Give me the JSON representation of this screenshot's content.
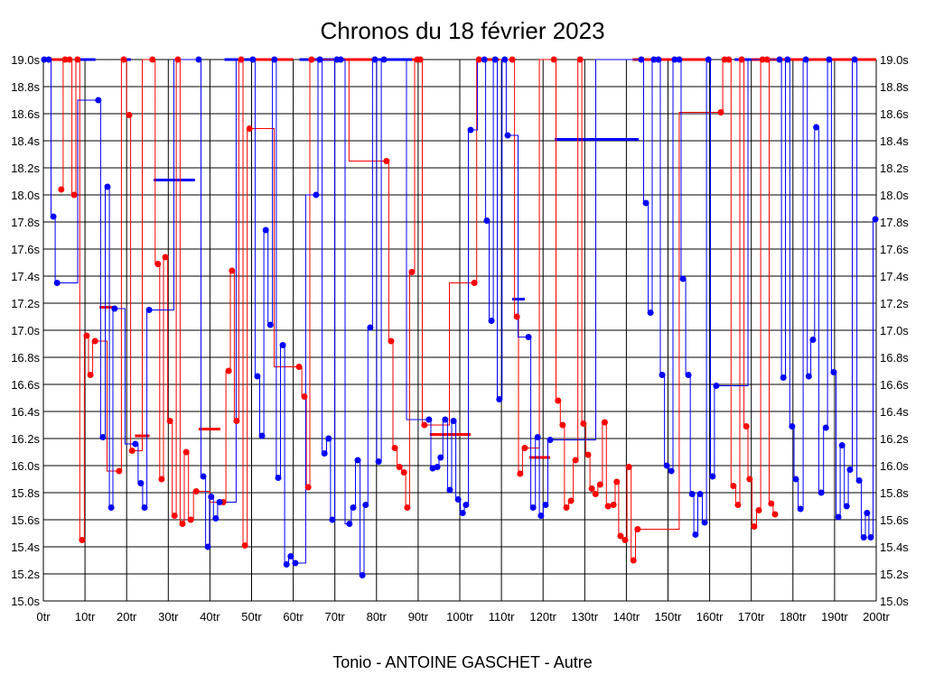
{
  "chart_data": {
    "type": "line",
    "title": "Chronos du 18 février 2023",
    "footer": "Tonio - ANTOINE GASCHET - Autre",
    "xlabel": "",
    "ylabel": "",
    "xlim": [
      0,
      200
    ],
    "ylim": [
      15.0,
      19.0
    ],
    "grid": true,
    "x_ticks": [
      "0tr",
      "10tr",
      "20tr",
      "30tr",
      "40tr",
      "50tr",
      "60tr",
      "70tr",
      "80tr",
      "90tr",
      "100tr",
      "110tr",
      "120tr",
      "130tr",
      "140tr",
      "150tr",
      "160tr",
      "170tr",
      "180tr",
      "190tr",
      "200tr"
    ],
    "y_ticks": [
      "15.0s",
      "15.2s",
      "15.4s",
      "15.6s",
      "15.8s",
      "16.0s",
      "16.2s",
      "16.4s",
      "16.6s",
      "16.8s",
      "17.0s",
      "17.2s",
      "17.4s",
      "17.6s",
      "17.8s",
      "18.0s",
      "18.2s",
      "18.4s",
      "18.6s",
      "18.8s",
      "19.0s"
    ],
    "colors": {
      "red": "#ff0000",
      "blue": "#0000ff"
    },
    "series": [
      {
        "name": "red",
        "points": [
          [
            5.2,
            19.0
          ],
          [
            6.3,
            19.0
          ],
          [
            4.3,
            18.04
          ],
          [
            7.4,
            18.0
          ],
          [
            8.2,
            19.0
          ],
          [
            9.3,
            15.45
          ],
          [
            10.4,
            16.96
          ],
          [
            11.3,
            16.67
          ],
          [
            12.4,
            16.92
          ],
          [
            18.2,
            15.96
          ],
          [
            19.3,
            19.0
          ],
          [
            20.6,
            18.59
          ],
          [
            21.3,
            16.11
          ],
          [
            26.2,
            19.0
          ],
          [
            27.5,
            17.49
          ],
          [
            28.4,
            15.9
          ],
          [
            29.3,
            17.54
          ],
          [
            30.4,
            16.33
          ],
          [
            31.5,
            15.63
          ],
          [
            32.3,
            19.0
          ],
          [
            33.4,
            15.57
          ],
          [
            34.3,
            16.1
          ],
          [
            35.4,
            15.6
          ],
          [
            36.7,
            15.81
          ],
          [
            43.2,
            15.73
          ],
          [
            44.5,
            16.7
          ],
          [
            45.3,
            17.44
          ],
          [
            46.4,
            16.33
          ],
          [
            47.5,
            19.0
          ],
          [
            48.4,
            15.41
          ],
          [
            49.5,
            18.49
          ],
          [
            61.4,
            16.73
          ],
          [
            62.7,
            16.51
          ],
          [
            63.6,
            15.84
          ],
          [
            64.4,
            19.0
          ],
          [
            82.4,
            18.25
          ],
          [
            83.5,
            16.92
          ],
          [
            84.4,
            16.13
          ],
          [
            85.5,
            15.99
          ],
          [
            86.6,
            15.95
          ],
          [
            87.4,
            15.69
          ],
          [
            88.5,
            17.43
          ],
          [
            89.8,
            19.0
          ],
          [
            90.5,
            19.0
          ],
          [
            91.5,
            16.3
          ],
          [
            103.5,
            17.35
          ],
          [
            104.6,
            19.0
          ],
          [
            112.6,
            19.0
          ],
          [
            113.7,
            17.1
          ],
          [
            114.5,
            15.94
          ],
          [
            115.6,
            16.13
          ],
          [
            122.6,
            19.0
          ],
          [
            123.6,
            16.48
          ],
          [
            124.7,
            16.3
          ],
          [
            125.6,
            15.69
          ],
          [
            126.7,
            15.74
          ],
          [
            127.8,
            16.04
          ],
          [
            128.9,
            19.0
          ],
          [
            129.7,
            16.31
          ],
          [
            130.8,
            16.08
          ],
          [
            131.7,
            15.83
          ],
          [
            132.6,
            15.79
          ],
          [
            133.7,
            15.86
          ],
          [
            134.8,
            16.32
          ],
          [
            135.6,
            15.7
          ],
          [
            136.9,
            15.71
          ],
          [
            137.7,
            15.88
          ],
          [
            138.6,
            15.48
          ],
          [
            139.7,
            15.45
          ],
          [
            140.6,
            15.99
          ],
          [
            141.7,
            15.3
          ],
          [
            142.7,
            15.53
          ],
          [
            162.7,
            18.61
          ],
          [
            163.6,
            19.0
          ],
          [
            164.6,
            19.0
          ],
          [
            165.7,
            15.85
          ],
          [
            166.8,
            15.71
          ],
          [
            167.7,
            19.0
          ],
          [
            168.8,
            16.29
          ],
          [
            169.6,
            15.9
          ],
          [
            170.7,
            15.55
          ],
          [
            171.8,
            15.67
          ],
          [
            172.7,
            19.0
          ],
          [
            173.8,
            19.0
          ],
          [
            174.8,
            15.72
          ],
          [
            175.7,
            15.64
          ]
        ]
      },
      {
        "name": "blue",
        "points": [
          [
            0.2,
            19.0
          ],
          [
            1.3,
            19.0
          ],
          [
            2.4,
            17.84
          ],
          [
            3.3,
            17.35
          ],
          [
            13.2,
            18.7
          ],
          [
            14.3,
            16.21
          ],
          [
            15.4,
            18.06
          ],
          [
            16.3,
            15.69
          ],
          [
            17.1,
            17.16
          ],
          [
            22.1,
            16.16
          ],
          [
            23.4,
            15.87
          ],
          [
            24.3,
            15.69
          ],
          [
            25.4,
            17.15
          ],
          [
            37.3,
            19.0
          ],
          [
            38.4,
            15.92
          ],
          [
            39.5,
            15.4
          ],
          [
            40.3,
            15.77
          ],
          [
            41.4,
            15.61
          ],
          [
            42.3,
            15.73
          ],
          [
            50.3,
            19.0
          ],
          [
            51.4,
            16.66
          ],
          [
            52.5,
            16.22
          ],
          [
            53.4,
            17.74
          ],
          [
            54.5,
            17.04
          ],
          [
            55.5,
            19.0
          ],
          [
            56.4,
            15.91
          ],
          [
            57.5,
            16.89
          ],
          [
            58.4,
            15.27
          ],
          [
            59.4,
            15.33
          ],
          [
            60.5,
            15.28
          ],
          [
            65.5,
            18.0
          ],
          [
            66.4,
            19.0
          ],
          [
            67.5,
            16.09
          ],
          [
            68.5,
            16.2
          ],
          [
            69.4,
            15.6
          ],
          [
            70.5,
            19.0
          ],
          [
            71.4,
            19.0
          ],
          [
            73.5,
            15.57
          ],
          [
            74.4,
            15.69
          ],
          [
            75.5,
            16.04
          ],
          [
            76.6,
            15.19
          ],
          [
            77.4,
            15.71
          ],
          [
            78.5,
            17.02
          ],
          [
            79.6,
            19.0
          ],
          [
            80.5,
            16.03
          ],
          [
            81.8,
            19.0
          ],
          [
            92.6,
            16.34
          ],
          [
            93.5,
            15.98
          ],
          [
            94.6,
            15.99
          ],
          [
            95.4,
            16.06
          ],
          [
            96.5,
            16.34
          ],
          [
            97.6,
            15.82
          ],
          [
            98.5,
            16.33
          ],
          [
            99.6,
            15.75
          ],
          [
            100.7,
            15.65
          ],
          [
            101.5,
            15.71
          ],
          [
            102.6,
            18.48
          ],
          [
            105.9,
            19.0
          ],
          [
            106.5,
            17.81
          ],
          [
            107.6,
            17.07
          ],
          [
            108.5,
            19.0
          ],
          [
            109.5,
            16.49
          ],
          [
            110.8,
            19.0
          ],
          [
            111.5,
            18.44
          ],
          [
            116.5,
            16.95
          ],
          [
            117.6,
            15.69
          ],
          [
            118.7,
            16.21
          ],
          [
            119.5,
            15.63
          ],
          [
            120.6,
            15.71
          ],
          [
            121.7,
            16.19
          ],
          [
            143.6,
            19.0
          ],
          [
            144.7,
            17.94
          ],
          [
            145.8,
            17.13
          ],
          [
            146.6,
            19.0
          ],
          [
            147.7,
            19.0
          ],
          [
            148.6,
            16.67
          ],
          [
            149.7,
            16.0
          ],
          [
            150.8,
            15.96
          ],
          [
            151.6,
            19.0
          ],
          [
            152.7,
            19.0
          ],
          [
            153.6,
            17.38
          ],
          [
            154.9,
            16.67
          ],
          [
            155.8,
            15.79
          ],
          [
            156.6,
            15.49
          ],
          [
            157.7,
            15.79
          ],
          [
            158.8,
            15.58
          ],
          [
            159.7,
            19.0
          ],
          [
            160.7,
            15.92
          ],
          [
            161.6,
            16.59
          ],
          [
            176.8,
            19.0
          ],
          [
            177.7,
            16.65
          ],
          [
            178.7,
            19.0
          ],
          [
            179.8,
            16.29
          ],
          [
            180.7,
            15.9
          ],
          [
            181.8,
            15.68
          ],
          [
            183.1,
            19.0
          ],
          [
            183.8,
            16.66
          ],
          [
            184.8,
            16.93
          ],
          [
            185.6,
            18.5
          ],
          [
            186.8,
            15.8
          ],
          [
            187.9,
            16.28
          ],
          [
            188.7,
            19.0
          ],
          [
            189.8,
            16.69
          ],
          [
            190.9,
            15.62
          ],
          [
            191.8,
            16.15
          ],
          [
            192.9,
            15.7
          ],
          [
            193.7,
            15.97
          ],
          [
            194.8,
            19.0
          ],
          [
            195.9,
            15.89
          ],
          [
            197.0,
            15.47
          ],
          [
            197.8,
            15.65
          ],
          [
            198.7,
            15.47
          ],
          [
            199.8,
            17.82
          ]
        ]
      }
    ],
    "averages": [
      {
        "series": "red",
        "x": [
          13.5,
          17.5
        ],
        "y": 17.17
      },
      {
        "series": "red",
        "x": [
          22.0,
          25.5
        ],
        "y": 16.22
      },
      {
        "series": "blue",
        "x": [
          26.5,
          36.4
        ],
        "y": 18.11
      },
      {
        "series": "red",
        "x": [
          37.3,
          42.5
        ],
        "y": 16.27
      },
      {
        "series": "red",
        "x": [
          92.8,
          102.6
        ],
        "y": 16.23
      },
      {
        "series": "blue",
        "x": [
          112.6,
          115.6
        ],
        "y": 17.23
      },
      {
        "series": "red",
        "x": [
          116.7,
          121.7
        ],
        "y": 16.06
      },
      {
        "series": "blue",
        "x": [
          122.8,
          143.0
        ],
        "y": 18.41
      },
      {
        "series": "blue",
        "x": [
          0,
          1.5
        ],
        "y": 19.0
      },
      {
        "series": "red",
        "x": [
          1.5,
          5.5
        ],
        "y": 19.0
      },
      {
        "series": "blue",
        "x": [
          8.5,
          12.5
        ],
        "y": 19.0
      },
      {
        "series": "blue",
        "x": [
          19.5,
          21.0
        ],
        "y": 19.0
      },
      {
        "series": "blue",
        "x": [
          43.5,
          50.0
        ],
        "y": 19.0
      },
      {
        "series": "red",
        "x": [
          50.0,
          60.0
        ],
        "y": 19.0
      },
      {
        "series": "blue",
        "x": [
          61.5,
          70.0
        ],
        "y": 19.0
      },
      {
        "series": "red",
        "x": [
          70.0,
          80.0
        ],
        "y": 19.0
      },
      {
        "series": "blue",
        "x": [
          80.0,
          88.5
        ],
        "y": 19.0
      },
      {
        "series": "red",
        "x": [
          88.5,
          90.5
        ],
        "y": 19.0
      },
      {
        "series": "blue",
        "x": [
          104.0,
          106.5
        ],
        "y": 19.0
      },
      {
        "series": "red",
        "x": [
          106.5,
          109.5
        ],
        "y": 19.0
      },
      {
        "series": "red",
        "x": [
          141.5,
          143.5
        ],
        "y": 19.0
      },
      {
        "series": "red",
        "x": [
          143.5,
          150.0
        ],
        "y": 19.0
      },
      {
        "series": "red",
        "x": [
          150.0,
          160.0
        ],
        "y": 19.0
      },
      {
        "series": "blue",
        "x": [
          166.0,
          170.0
        ],
        "y": 19.0
      },
      {
        "series": "red",
        "x": [
          170.0,
          200.0
        ],
        "y": 19.0
      }
    ]
  }
}
